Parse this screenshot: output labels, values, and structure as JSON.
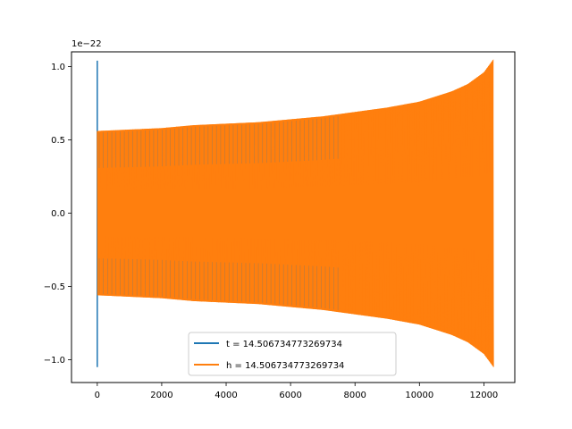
{
  "chart_data": {
    "type": "line",
    "title": "",
    "xlabel": "",
    "ylabel": "",
    "y_offset_text": "1e−22",
    "xlim": [
      -800,
      12960
    ],
    "ylim": [
      -1.155,
      1.1
    ],
    "x_ticks": [
      0,
      2000,
      4000,
      6000,
      8000,
      10000,
      12000
    ],
    "x_tick_labels": [
      "0",
      "2000",
      "4000",
      "6000",
      "8000",
      "10000",
      "12000"
    ],
    "y_ticks": [
      -1.0,
      -0.5,
      0.0,
      0.5,
      1.0
    ],
    "y_tick_labels": [
      "−1.0",
      "−0.5",
      "0.0",
      "0.5",
      "1.0"
    ],
    "grid": false,
    "legend_position": "lower-center",
    "series": [
      {
        "name": "t = 14.506734773269734",
        "color": "#1f77b4",
        "x": [
          0,
          0,
          0
        ],
        "y": [
          1.04,
          -1.05,
          0.0
        ]
      },
      {
        "name": "h = 14.506734773269734",
        "color": "#ff7f0e",
        "x": [
          0,
          1000,
          2000,
          3000,
          4000,
          5000,
          6000,
          7000,
          8000,
          9000,
          10000,
          11000,
          11500,
          12000,
          12300
        ],
        "y_upper": [
          0.56,
          0.57,
          0.58,
          0.6,
          0.61,
          0.62,
          0.64,
          0.66,
          0.69,
          0.72,
          0.76,
          0.83,
          0.88,
          0.96,
          1.05
        ],
        "y_lower": [
          -0.56,
          -0.57,
          -0.58,
          -0.6,
          -0.61,
          -0.62,
          -0.64,
          -0.66,
          -0.69,
          -0.72,
          -0.76,
          -0.83,
          -0.88,
          -0.96,
          -1.05
        ]
      }
    ]
  }
}
